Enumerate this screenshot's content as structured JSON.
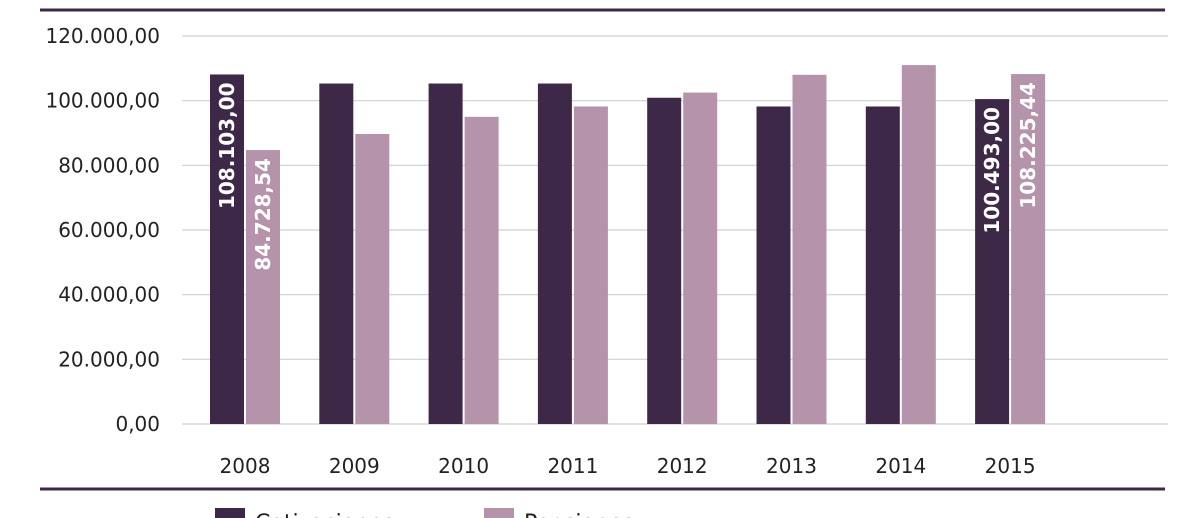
{
  "chart_data": {
    "type": "bar",
    "categories": [
      "2008",
      "2009",
      "2010",
      "2011",
      "2012",
      "2013",
      "2014",
      "2015"
    ],
    "series": [
      {
        "name": "Cotizaciones",
        "color": "#3d2847",
        "values": [
          108103.0,
          105300,
          105300,
          105300,
          100900,
          98200,
          98200,
          100493.0
        ]
      },
      {
        "name": "Pensiones",
        "color": "#b593aa",
        "values": [
          84728.54,
          89700,
          95000,
          98200,
          102500,
          108000,
          111000,
          108225.44
        ]
      }
    ],
    "data_labels": [
      {
        "series": 0,
        "index": 0,
        "text": "108.103,00"
      },
      {
        "series": 1,
        "index": 0,
        "text": "84.728,54"
      },
      {
        "series": 0,
        "index": 7,
        "text": "100.493,00"
      },
      {
        "series": 1,
        "index": 7,
        "text": "108.225,44"
      }
    ],
    "y_ticks": [
      0,
      20000,
      40000,
      60000,
      80000,
      100000,
      120000
    ],
    "y_tick_labels": [
      "0,00",
      "20.000,00",
      "40.000,00",
      "60.000,00",
      "80.000,00",
      "100.000,00",
      "120.000,00"
    ],
    "ylim": [
      0,
      120000
    ],
    "grid": true,
    "legend_position": "bottom",
    "title": "",
    "xlabel": "",
    "ylabel": ""
  }
}
